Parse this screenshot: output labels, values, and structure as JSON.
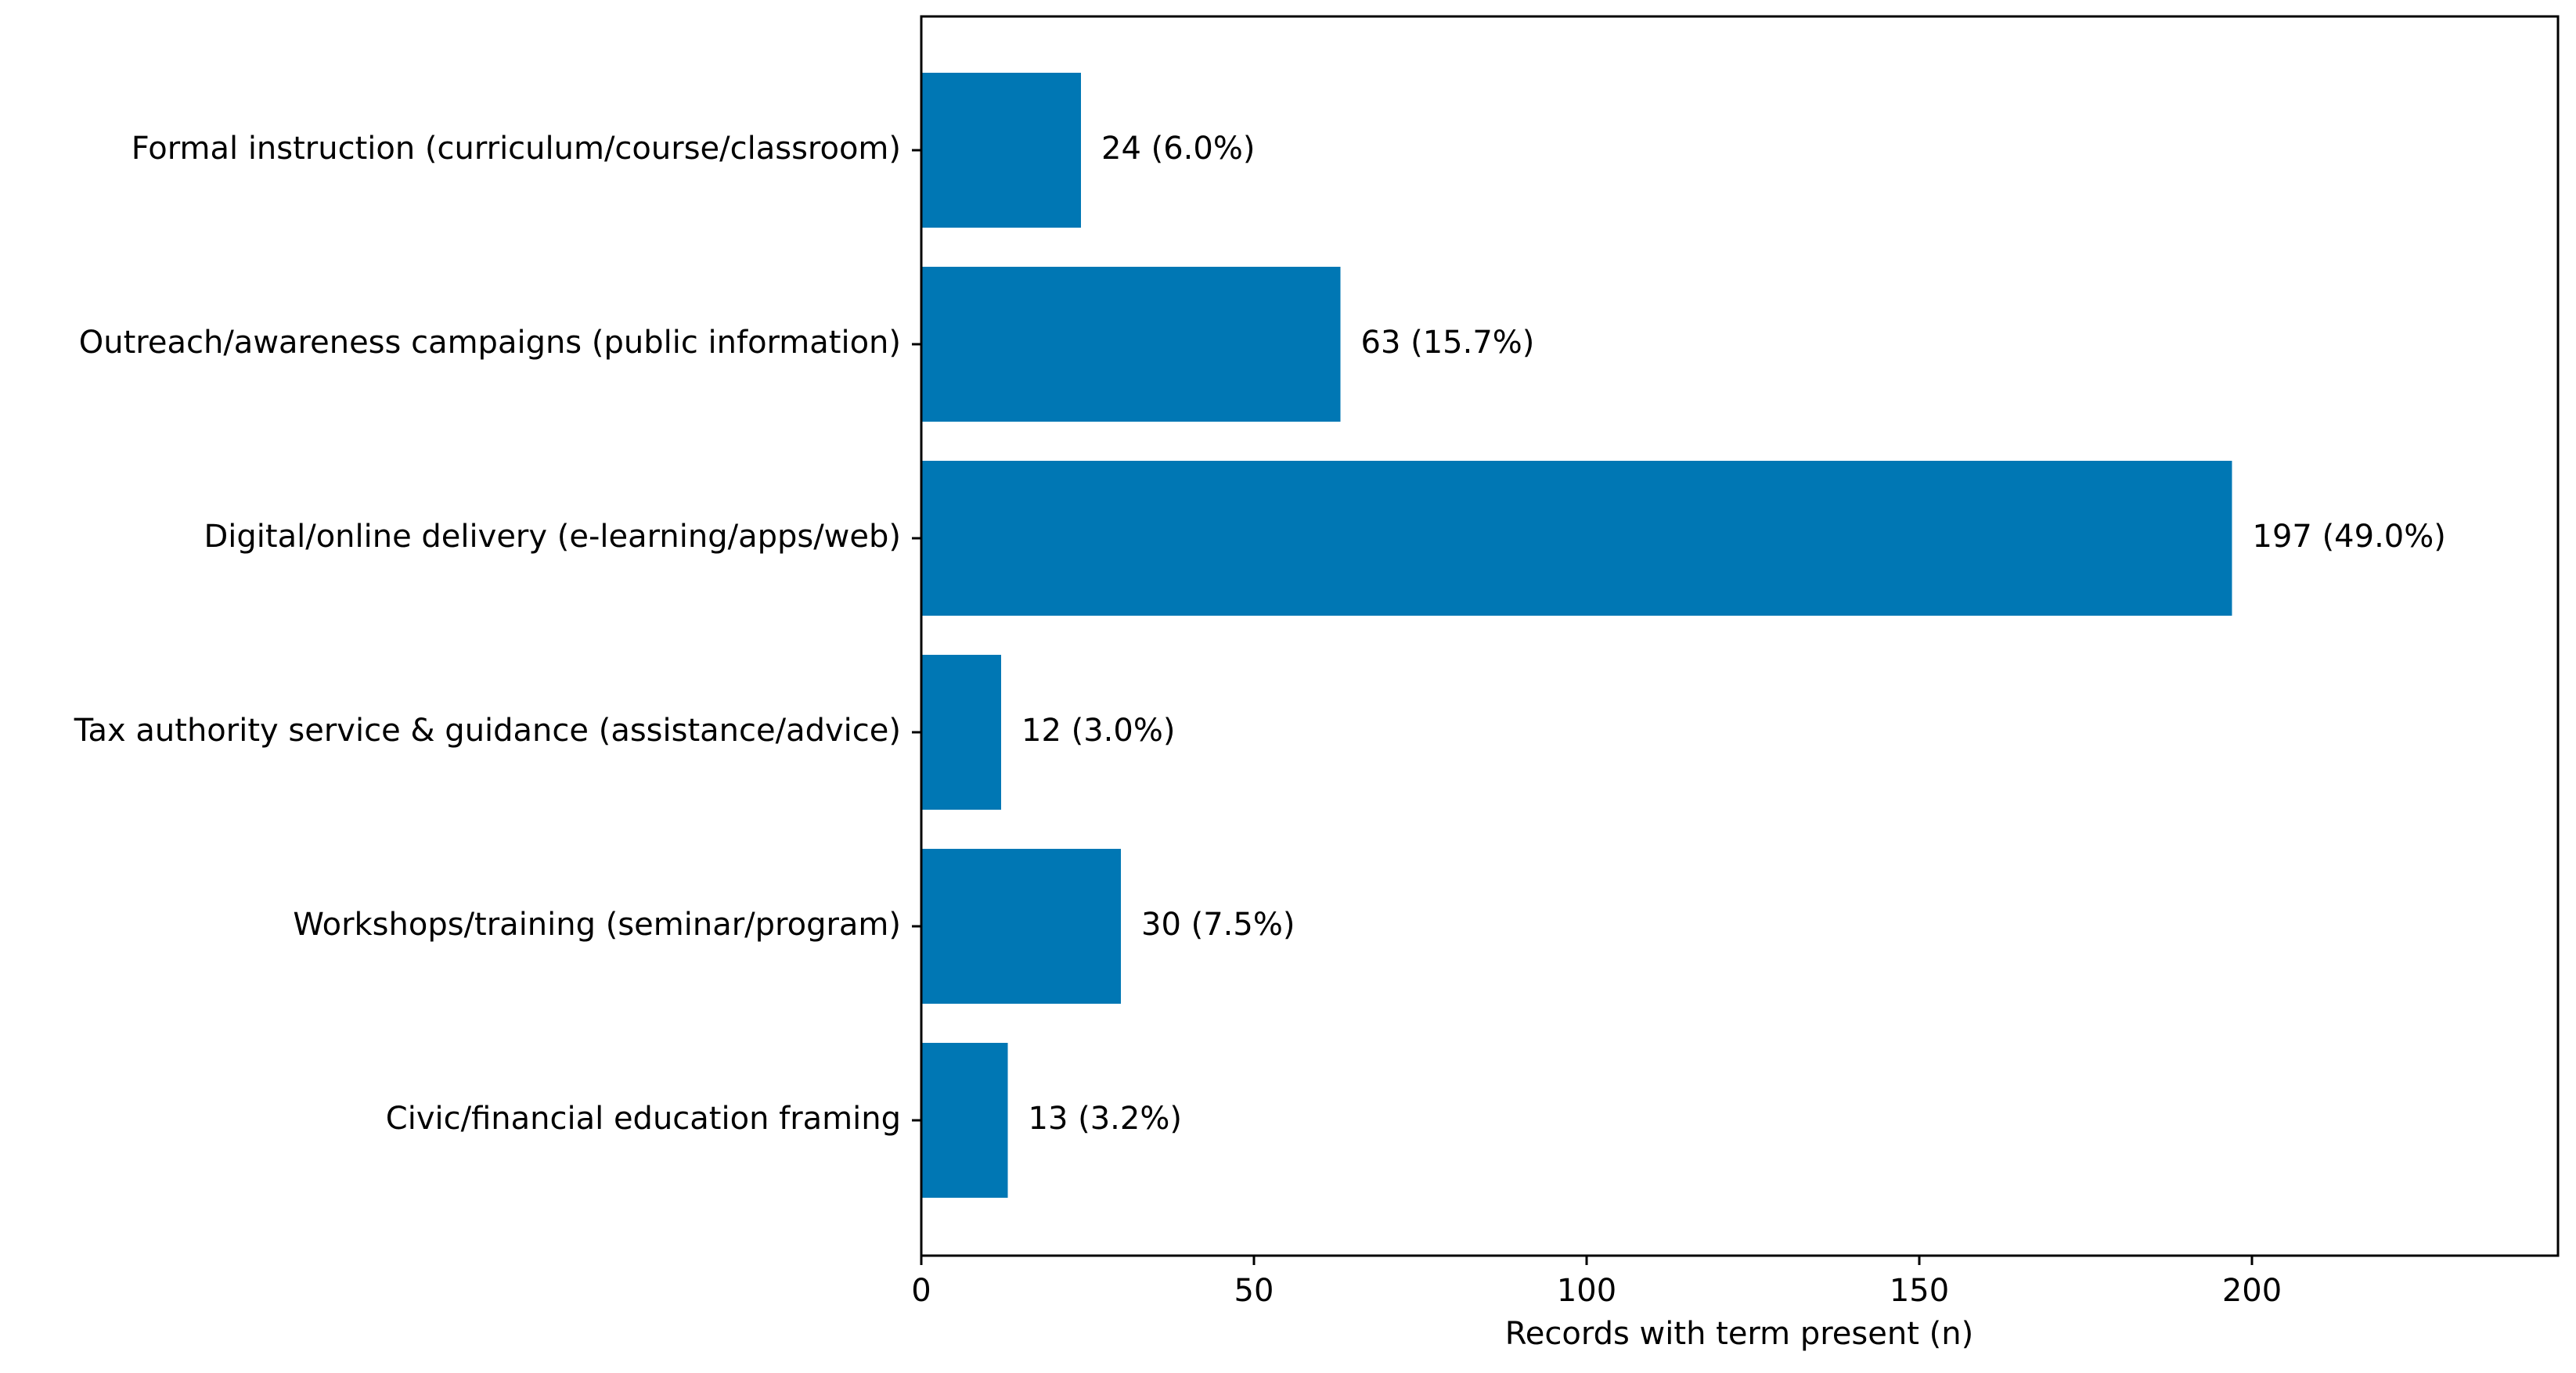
{
  "chart_data": {
    "type": "bar",
    "orientation": "horizontal",
    "categories": [
      "Formal instruction (curriculum/course/classroom)",
      "Outreach/awareness campaigns (public information)",
      "Digital/online delivery (e-learning/apps/web)",
      "Tax authority service & guidance (assistance/advice)",
      "Workshops/training (seminar/program)",
      "Civic/financial education framing"
    ],
    "values": [
      24,
      63,
      197,
      12,
      30,
      13
    ],
    "data_labels": [
      "24 (6.0%)",
      "63 (15.7%)",
      "197 (49.0%)",
      "12 (3.0%)",
      "30 (7.5%)",
      "13 (3.2%)"
    ],
    "title": "",
    "xlabel": "Records with term present (n)",
    "ylabel": "",
    "xlim": [
      0,
      246
    ],
    "xticks": [
      0,
      50,
      100,
      150,
      200
    ],
    "xtick_labels": [
      "0",
      "50",
      "100",
      "150",
      "200"
    ],
    "grid": false,
    "legend": "none",
    "bar_color": "#0077b4"
  }
}
